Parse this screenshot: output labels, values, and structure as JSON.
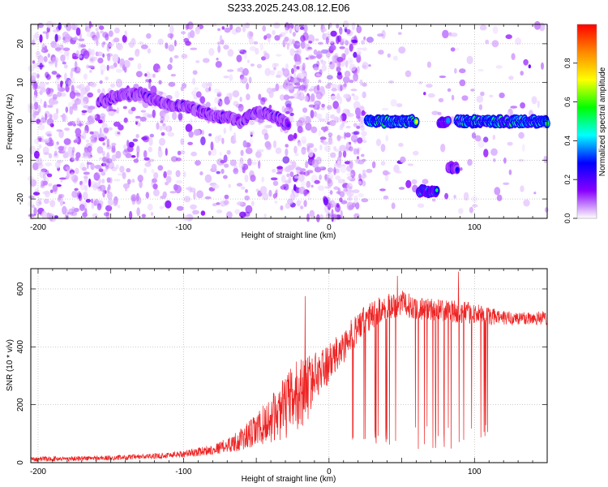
{
  "title": "S233.2025.243.08.12.E06",
  "chart_data": [
    {
      "type": "heatmap",
      "xlabel": "Height of straight line (km)",
      "ylabel": "Frequency (Hz)",
      "xlim": [
        -205,
        150
      ],
      "ylim": [
        -25,
        25
      ],
      "xticks": [
        -200,
        -100,
        0,
        100
      ],
      "yticks": [
        20,
        10,
        0,
        -10,
        -20
      ],
      "colorbar": {
        "label": "Normalized spectral amplitude",
        "range": [
          0,
          1
        ],
        "ticks": [
          0.0,
          0.2,
          0.4,
          0.6,
          0.8
        ],
        "colors": [
          "#ffffff",
          "#8800ff",
          "#0000ff",
          "#00ffff",
          "#00ff00",
          "#ffff00",
          "#ff8800",
          "#ff0000"
        ]
      },
      "ridges": [
        {
          "name": "descending trace",
          "x": [
            -158,
            -140,
            -128,
            -118,
            -108,
            -100,
            -92,
            -84,
            -76,
            -68,
            -60,
            -52,
            -44,
            -36,
            -28
          ],
          "y": [
            5,
            7,
            7,
            5,
            4,
            4,
            3,
            2,
            1,
            1,
            0,
            2,
            2,
            1,
            -1
          ],
          "amplitude": 0.3
        },
        {
          "name": "zero-hz line A",
          "x": [
            26,
            60
          ],
          "y": [
            0,
            0
          ],
          "amplitude": 0.85
        },
        {
          "name": "zero-hz line B",
          "x": [
            76,
            82
          ],
          "y": [
            0,
            0
          ],
          "amplitude": 0.55
        },
        {
          "name": "zero-hz line C",
          "x": [
            88,
            150
          ],
          "y": [
            0,
            0
          ],
          "amplitude": 0.8
        },
        {
          "name": "low band",
          "x": [
            62,
            74
          ],
          "y": [
            -18,
            -18
          ],
          "amplitude": 0.6
        },
        {
          "name": "mid band",
          "x": [
            82,
            88
          ],
          "y": [
            -12,
            -12
          ],
          "amplitude": 0.35
        }
      ],
      "noise_regions": [
        {
          "x": [
            -205,
            -150
          ],
          "density": 1.0
        },
        {
          "x": [
            -150,
            -30
          ],
          "density": 0.45
        },
        {
          "x": [
            -30,
            25
          ],
          "density": 1.0
        },
        {
          "x": [
            25,
            150
          ],
          "density": 0.12
        }
      ]
    },
    {
      "type": "line",
      "xlabel": "Height of straight line (km)",
      "ylabel": "SNR (10 * v/v)",
      "xlim": [
        -205,
        150
      ],
      "ylim": [
        0,
        670
      ],
      "xticks": [
        -200,
        -100,
        0,
        100
      ],
      "yticks": [
        0,
        200,
        400,
        600
      ],
      "series": [
        {
          "name": "SNR",
          "color": "#ee2222",
          "envelope": {
            "x": [
              -205,
              -150,
              -120,
              -100,
              -80,
              -70,
              -60,
              -50,
              -40,
              -30,
              -25,
              -20,
              -15,
              -10,
              0,
              10,
              20,
              30,
              40,
              50,
              60,
              70,
              80,
              90,
              100,
              110,
              120,
              130,
              140,
              150
            ],
            "base": [
              12,
              16,
              22,
              30,
              45,
              60,
              80,
              110,
              150,
              190,
              220,
              240,
              260,
              300,
              340,
              400,
              470,
              510,
              540,
              550,
              535,
              530,
              525,
              520,
              515,
              505,
              500,
              498,
              500,
              500
            ],
            "noise": [
              8,
              9,
              10,
              12,
              18,
              25,
              40,
              60,
              80,
              110,
              120,
              130,
              120,
              80,
              70,
              60,
              55,
              50,
              45,
              45,
              40,
              40,
              40,
              38,
              36,
              30,
              25,
              25,
              25,
              25
            ]
          },
          "dropouts": {
            "x_range": [
              15,
              112
            ],
            "low": 45,
            "high": 130
          },
          "spikes": [
            {
              "x": -16.5,
              "y": 575
            },
            {
              "x": 47,
              "y": 645
            },
            {
              "x": 89,
              "y": 660
            }
          ]
        }
      ]
    }
  ]
}
